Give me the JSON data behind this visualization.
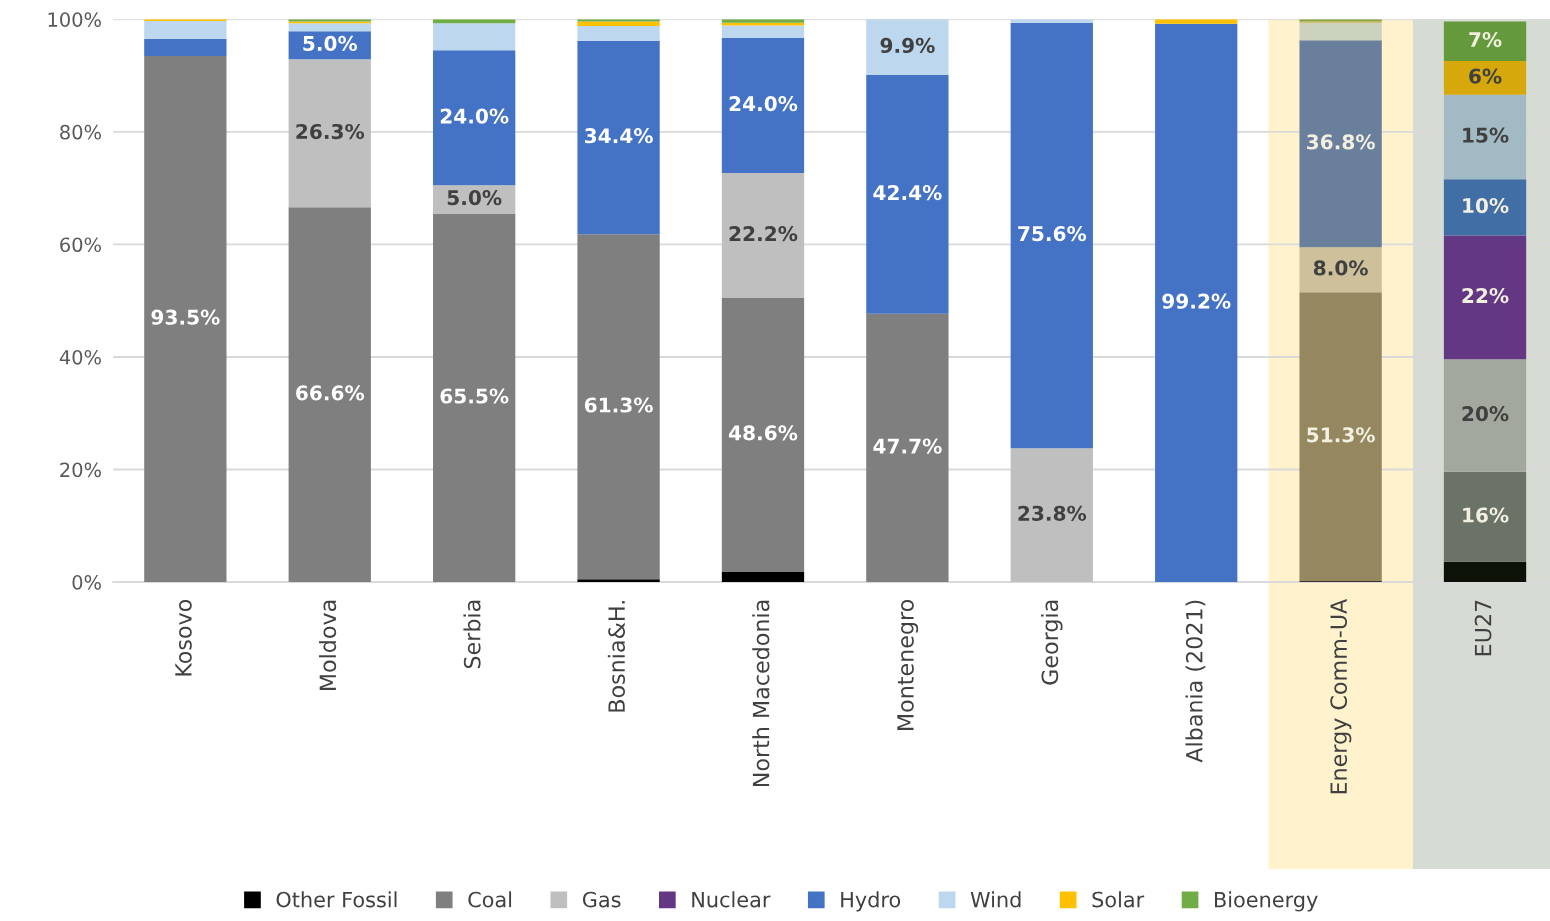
{
  "chart_data": {
    "type": "bar",
    "stacked": true,
    "categories": [
      "Kosovo",
      "Moldova",
      "Serbia",
      "Bosnia&H.",
      "North Macedonia",
      "Montenegro",
      "Georgia",
      "Albania (2021)",
      "Energy Comm-UA",
      "EU27"
    ],
    "ylim": [
      0,
      100
    ],
    "yticks": [
      {
        "value": 0,
        "label": "0%"
      },
      {
        "value": 20,
        "label": "20%"
      },
      {
        "value": 40,
        "label": "40%"
      },
      {
        "value": 60,
        "label": "60%"
      },
      {
        "value": 80,
        "label": "80%"
      },
      {
        "value": 100,
        "label": "100%"
      }
    ],
    "grid": "y",
    "legend": "bottom",
    "bands": [
      {
        "axis": "x",
        "from": "Energy Comm-UA",
        "to": "Energy Comm-UA",
        "color": "#fff2cc"
      },
      {
        "axis": "x",
        "from": "EU27",
        "to": "EU27",
        "color": "#d6dcd4"
      }
    ],
    "series": [
      {
        "name": "Other Fossil",
        "color": "#000000",
        "values": [
          0,
          0,
          0,
          0.5,
          1.9,
          0,
          0,
          0,
          0.2,
          3.6
        ],
        "colors": [
          "#000000",
          "#000000",
          "#000000",
          "#000000",
          "#000000",
          "#000000",
          "#000000",
          "#000000",
          "#3e3420",
          "#0c1207"
        ],
        "value_labels": [
          null,
          null,
          null,
          null,
          null,
          null,
          null,
          null,
          null,
          null
        ]
      },
      {
        "name": "Coal",
        "color": "#7f7f7f",
        "values": [
          93.5,
          66.6,
          65.5,
          61.3,
          48.6,
          47.7,
          0,
          0,
          51.3,
          16
        ],
        "colors": [
          "#7f7f7f",
          "#7f7f7f",
          "#7f7f7f",
          "#7f7f7f",
          "#7f7f7f",
          "#7f7f7f",
          "#7f7f7f",
          "#7f7f7f",
          "#958760",
          "#6b7268"
        ],
        "value_labels": [
          "93.5%",
          "66.6%",
          "65.5%",
          "61.3%",
          "48.6%",
          "47.7%",
          null,
          null,
          "51.3%",
          "16%"
        ]
      },
      {
        "name": "Gas",
        "color": "#bfbfbf",
        "values": [
          0,
          26.3,
          5.0,
          0,
          22.2,
          0,
          23.8,
          0,
          8.0,
          20
        ],
        "colors": [
          "#bfbfbf",
          "#bfbfbf",
          "#bfbfbf",
          "#bfbfbf",
          "#bfbfbf",
          "#bfbfbf",
          "#bfbfbf",
          "#bfbfbf",
          "#cdc09a",
          "#a3a89e"
        ],
        "value_labels": [
          null,
          "26.3%",
          "5.0%",
          null,
          "22.2%",
          null,
          "23.8%",
          null,
          "8.0%",
          "20%"
        ]
      },
      {
        "name": "Nuclear",
        "color": "#643785",
        "values": [
          0,
          0,
          0,
          0,
          0,
          0,
          0,
          0,
          0,
          22
        ],
        "colors": [
          "#7030a0",
          "#7030a0",
          "#7030a0",
          "#7030a0",
          "#7030a0",
          "#7030a0",
          "#7030a0",
          "#7030a0",
          "#7030a0",
          "#643785"
        ],
        "value_labels": [
          null,
          null,
          null,
          null,
          null,
          null,
          null,
          null,
          null,
          "22%"
        ]
      },
      {
        "name": "Hydro",
        "color": "#4472c4",
        "values": [
          3.0,
          5.0,
          24.0,
          34.4,
          24.0,
          42.4,
          75.6,
          99.2,
          36.8,
          10
        ],
        "colors": [
          "#4472c4",
          "#4472c4",
          "#4472c4",
          "#4472c4",
          "#4472c4",
          "#4472c4",
          "#4472c4",
          "#4472c4",
          "#6a7f9c",
          "#426ea6"
        ],
        "value_labels": [
          null,
          "5.0%",
          "24.0%",
          "34.4%",
          "24.0%",
          "42.4%",
          "75.6%",
          "99.2%",
          "36.8%",
          "10%"
        ]
      },
      {
        "name": "Wind",
        "color": "#bdd7ee",
        "values": [
          3.2,
          1.4,
          4.8,
          2.6,
          2.2,
          9.9,
          0.6,
          0,
          3.1,
          15
        ],
        "colors": [
          "#bdd7ee",
          "#bdd7ee",
          "#bdd7ee",
          "#bdd7ee",
          "#bdd7ee",
          "#bdd7ee",
          "#bdd7ee",
          "#bdd7ee",
          "#cbd3bf",
          "#a2bac4"
        ],
        "value_labels": [
          null,
          null,
          null,
          null,
          null,
          "9.9%",
          null,
          null,
          null,
          "15%"
        ]
      },
      {
        "name": "Solar",
        "color": "#ffc000",
        "values": [
          0.3,
          0.3,
          0,
          0.8,
          0.5,
          0,
          0,
          0.8,
          0.2,
          6
        ],
        "colors": [
          "#ffc000",
          "#ffc000",
          "#ffc000",
          "#ffc000",
          "#ffc000",
          "#ffc000",
          "#ffc000",
          "#ffc000",
          "#c8b24a",
          "#d6a80c"
        ],
        "value_labels": [
          null,
          null,
          null,
          null,
          null,
          null,
          null,
          null,
          null,
          "6%"
        ]
      },
      {
        "name": "Bioenergy",
        "color": "#70ad47",
        "values": [
          0,
          0.4,
          0.7,
          0.4,
          0.6,
          0,
          0,
          0,
          0.4,
          7
        ],
        "colors": [
          "#70ad47",
          "#70ad47",
          "#70ad47",
          "#70ad47",
          "#70ad47",
          "#70ad47",
          "#70ad47",
          "#70ad47",
          "#8aa54a",
          "#649a3c"
        ],
        "value_labels": [
          null,
          null,
          null,
          null,
          null,
          null,
          null,
          null,
          null,
          "7%"
        ]
      }
    ]
  }
}
